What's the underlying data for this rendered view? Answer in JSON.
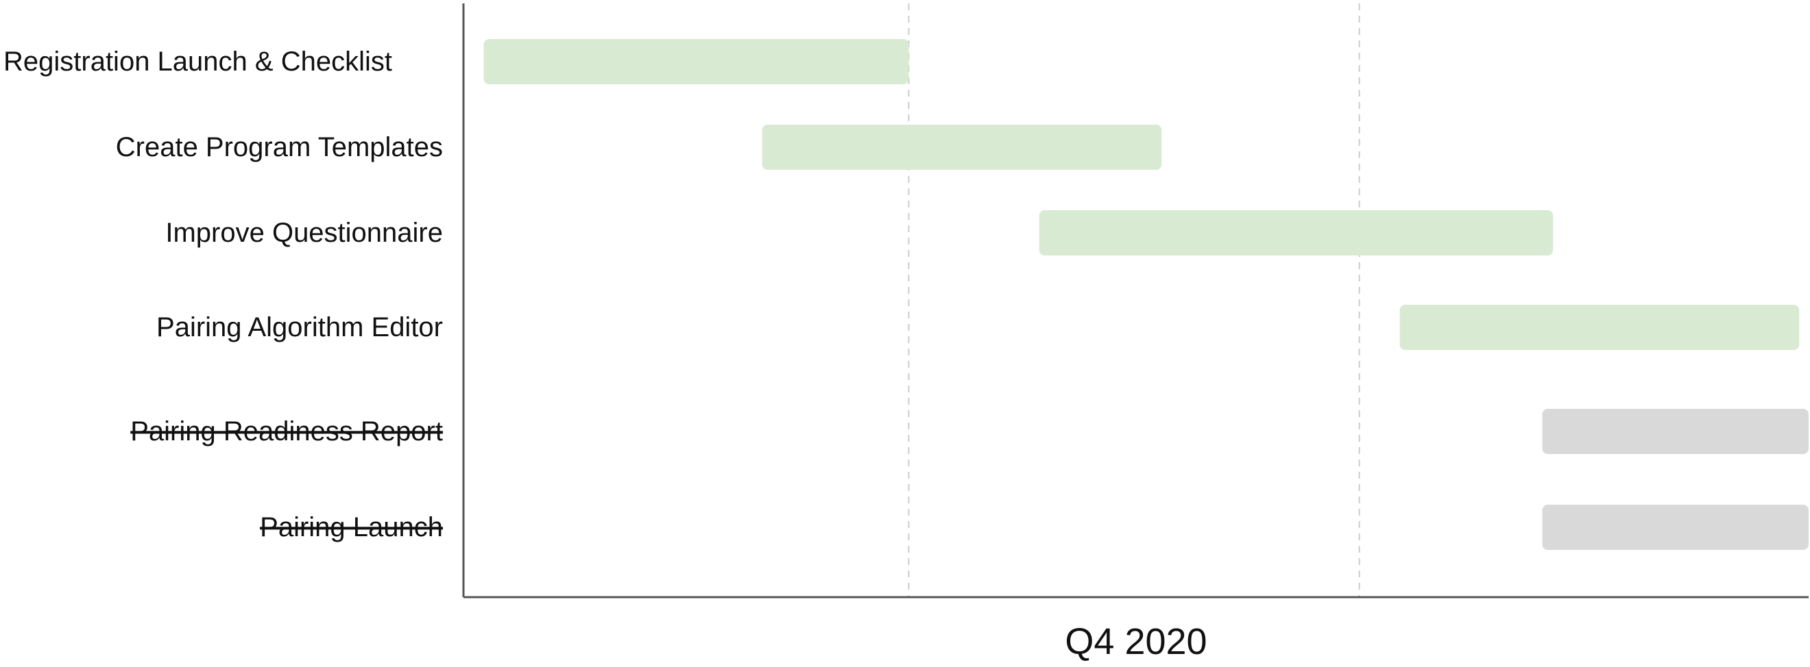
{
  "chart_data": {
    "type": "gantt",
    "xlabel": "Q4 2020",
    "x_range": [
      0,
      100
    ],
    "gridlines": [
      33.1,
      66.6
    ],
    "grid": "vertical-dashed",
    "colors": {
      "active": "#d9ead3",
      "cancelled": "#d9d9d9",
      "axis": "#555555",
      "grid": "#cccccc",
      "text": "#111111"
    },
    "tasks": [
      {
        "name": "Registration Launch & Checklist",
        "start": 1.5,
        "end": 33.1,
        "status": "active"
      },
      {
        "name": "Create Program Templates",
        "start": 22.2,
        "end": 51.9,
        "status": "active"
      },
      {
        "name": "Improve Questionnaire",
        "start": 42.8,
        "end": 81.0,
        "status": "active"
      },
      {
        "name": "Pairing Algorithm Editor",
        "start": 69.6,
        "end": 99.3,
        "status": "active"
      },
      {
        "name": "Pairing Readiness Report",
        "start": 80.2,
        "end": 100.0,
        "status": "cancelled"
      },
      {
        "name": "Pairing Launch",
        "start": 80.2,
        "end": 100.0,
        "status": "cancelled"
      }
    ]
  }
}
